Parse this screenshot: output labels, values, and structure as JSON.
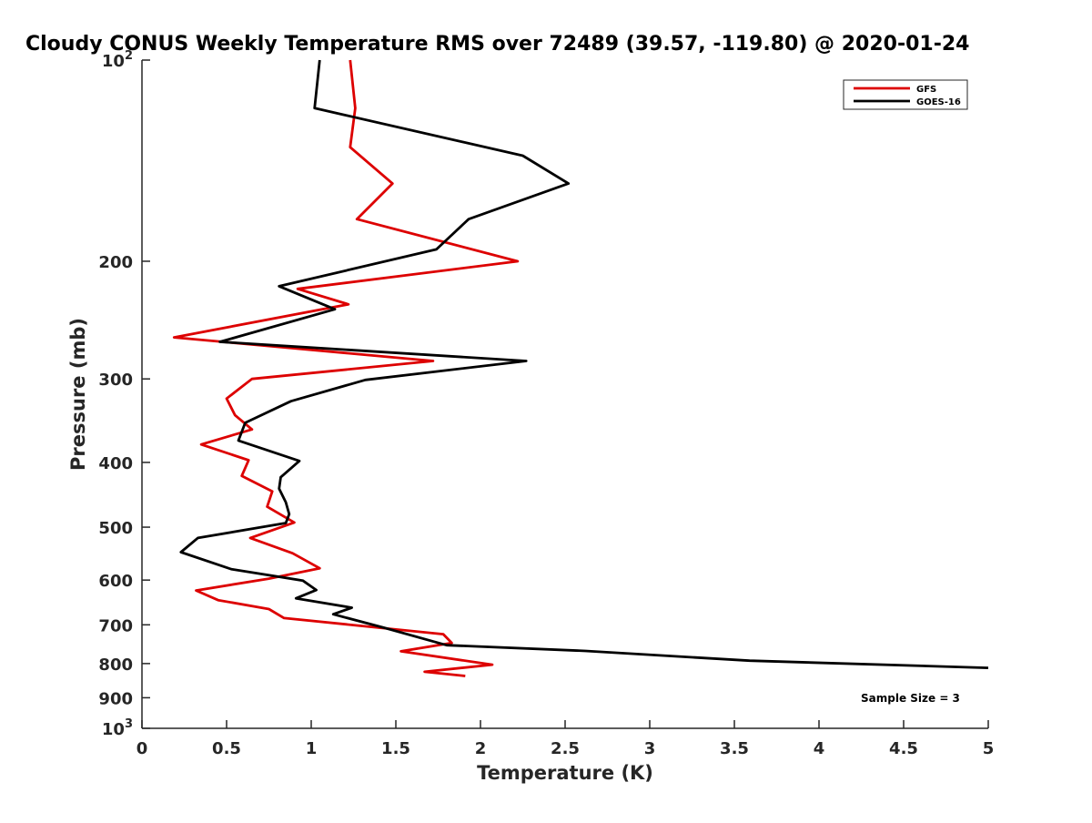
{
  "chart_data": {
    "type": "line",
    "title": "Cloudy CONUS Weekly Temperature RMS over 72489 (39.57, -119.80) @ 2020-01-24",
    "xlabel": "Temperature (K)",
    "ylabel": "Pressure (mb)",
    "xlim": [
      0,
      5
    ],
    "ylim": [
      100,
      1000
    ],
    "y_scale": "log",
    "y_reversed": true,
    "grid": false,
    "legend_position": "top-right",
    "x_ticks": [
      "0",
      "0.5",
      "1",
      "1.5",
      "2",
      "2.5",
      "3",
      "3.5",
      "4",
      "4.5",
      "5"
    ],
    "x_tick_values": [
      0,
      0.5,
      1,
      1.5,
      2,
      2.5,
      3,
      3.5,
      4,
      4.5,
      5
    ],
    "y_ticks": [
      {
        "value": 100,
        "base": "10",
        "exp": "2"
      },
      {
        "value": 200,
        "label": "200"
      },
      {
        "value": 300,
        "label": "300"
      },
      {
        "value": 400,
        "label": "400"
      },
      {
        "value": 500,
        "label": "500"
      },
      {
        "value": 600,
        "label": "600"
      },
      {
        "value": 700,
        "label": "700"
      },
      {
        "value": 800,
        "label": "800"
      },
      {
        "value": 900,
        "label": "900"
      },
      {
        "value": 1000,
        "base": "10",
        "exp": "3"
      }
    ],
    "series": [
      {
        "name": "GFS",
        "color": "#dd0000",
        "points": [
          [
            1.23,
            100
          ],
          [
            1.26,
            118
          ],
          [
            1.23,
            135
          ],
          [
            1.48,
            153
          ],
          [
            1.27,
            173
          ],
          [
            2.22,
            200
          ],
          [
            0.92,
            220
          ],
          [
            1.22,
            232
          ],
          [
            0.19,
            260
          ],
          [
            1.72,
            282
          ],
          [
            0.65,
            300
          ],
          [
            0.5,
            321
          ],
          [
            0.55,
            340
          ],
          [
            0.65,
            357
          ],
          [
            0.35,
            376
          ],
          [
            0.63,
            397
          ],
          [
            0.59,
            419
          ],
          [
            0.77,
            442
          ],
          [
            0.74,
            466
          ],
          [
            0.9,
            492
          ],
          [
            0.64,
            519
          ],
          [
            0.89,
            547
          ],
          [
            1.05,
            576
          ],
          [
            0.75,
            597
          ],
          [
            0.32,
            622
          ],
          [
            0.45,
            643
          ],
          [
            0.75,
            663
          ],
          [
            0.84,
            684
          ],
          [
            1.78,
            723
          ],
          [
            1.83,
            745
          ],
          [
            1.53,
            767
          ],
          [
            2.07,
            803
          ],
          [
            1.67,
            823
          ],
          [
            1.91,
            835
          ]
        ]
      },
      {
        "name": "GOES-16",
        "color": "#000000",
        "points": [
          [
            1.05,
            100
          ],
          [
            1.02,
            118
          ],
          [
            2.25,
            139
          ],
          [
            2.52,
            153
          ],
          [
            1.93,
            173
          ],
          [
            1.74,
            192
          ],
          [
            0.81,
            218
          ],
          [
            1.14,
            236
          ],
          [
            0.46,
            264
          ],
          [
            2.27,
            282
          ],
          [
            1.32,
            301
          ],
          [
            0.88,
            324
          ],
          [
            0.61,
            349
          ],
          [
            0.57,
            371
          ],
          [
            0.93,
            398
          ],
          [
            0.82,
            421
          ],
          [
            0.81,
            438
          ],
          [
            0.85,
            459
          ],
          [
            0.87,
            478
          ],
          [
            0.85,
            493
          ],
          [
            0.33,
            519
          ],
          [
            0.23,
            545
          ],
          [
            0.53,
            578
          ],
          [
            0.95,
            601
          ],
          [
            1.03,
            621
          ],
          [
            0.91,
            639
          ],
          [
            1.24,
            660
          ],
          [
            1.13,
            675
          ],
          [
            1.43,
            707
          ],
          [
            1.8,
            751
          ],
          [
            2.62,
            766
          ],
          [
            3.59,
            792
          ],
          [
            5.0,
            812
          ]
        ]
      }
    ],
    "annotations": [
      "Sample Size = 3"
    ]
  }
}
